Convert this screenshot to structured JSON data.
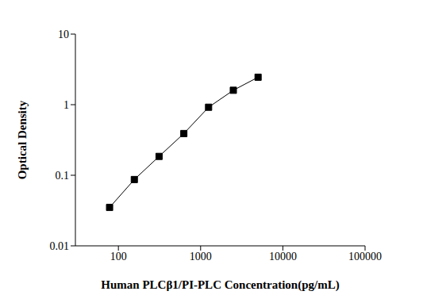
{
  "chart_data": {
    "type": "line",
    "x_label": "Human PLCβ1/PI-PLC Concentration(pg/mL)",
    "y_label": "Optical Density",
    "x": [
      78.13,
      156.25,
      312.5,
      625,
      1250,
      2500,
      5000
    ],
    "values": [
      0.035,
      0.087,
      0.185,
      0.39,
      0.92,
      1.6,
      2.45
    ],
    "color": "#000000",
    "marker": "square",
    "line_style": "solid",
    "log": true,
    "grid": false,
    "xlim": [
      30,
      100000
    ],
    "xticks": [
      100,
      1000,
      10000,
      100000
    ],
    "ylim": [
      0.01,
      10
    ],
    "yticks": [
      0.01,
      0.1,
      1,
      10
    ]
  }
}
